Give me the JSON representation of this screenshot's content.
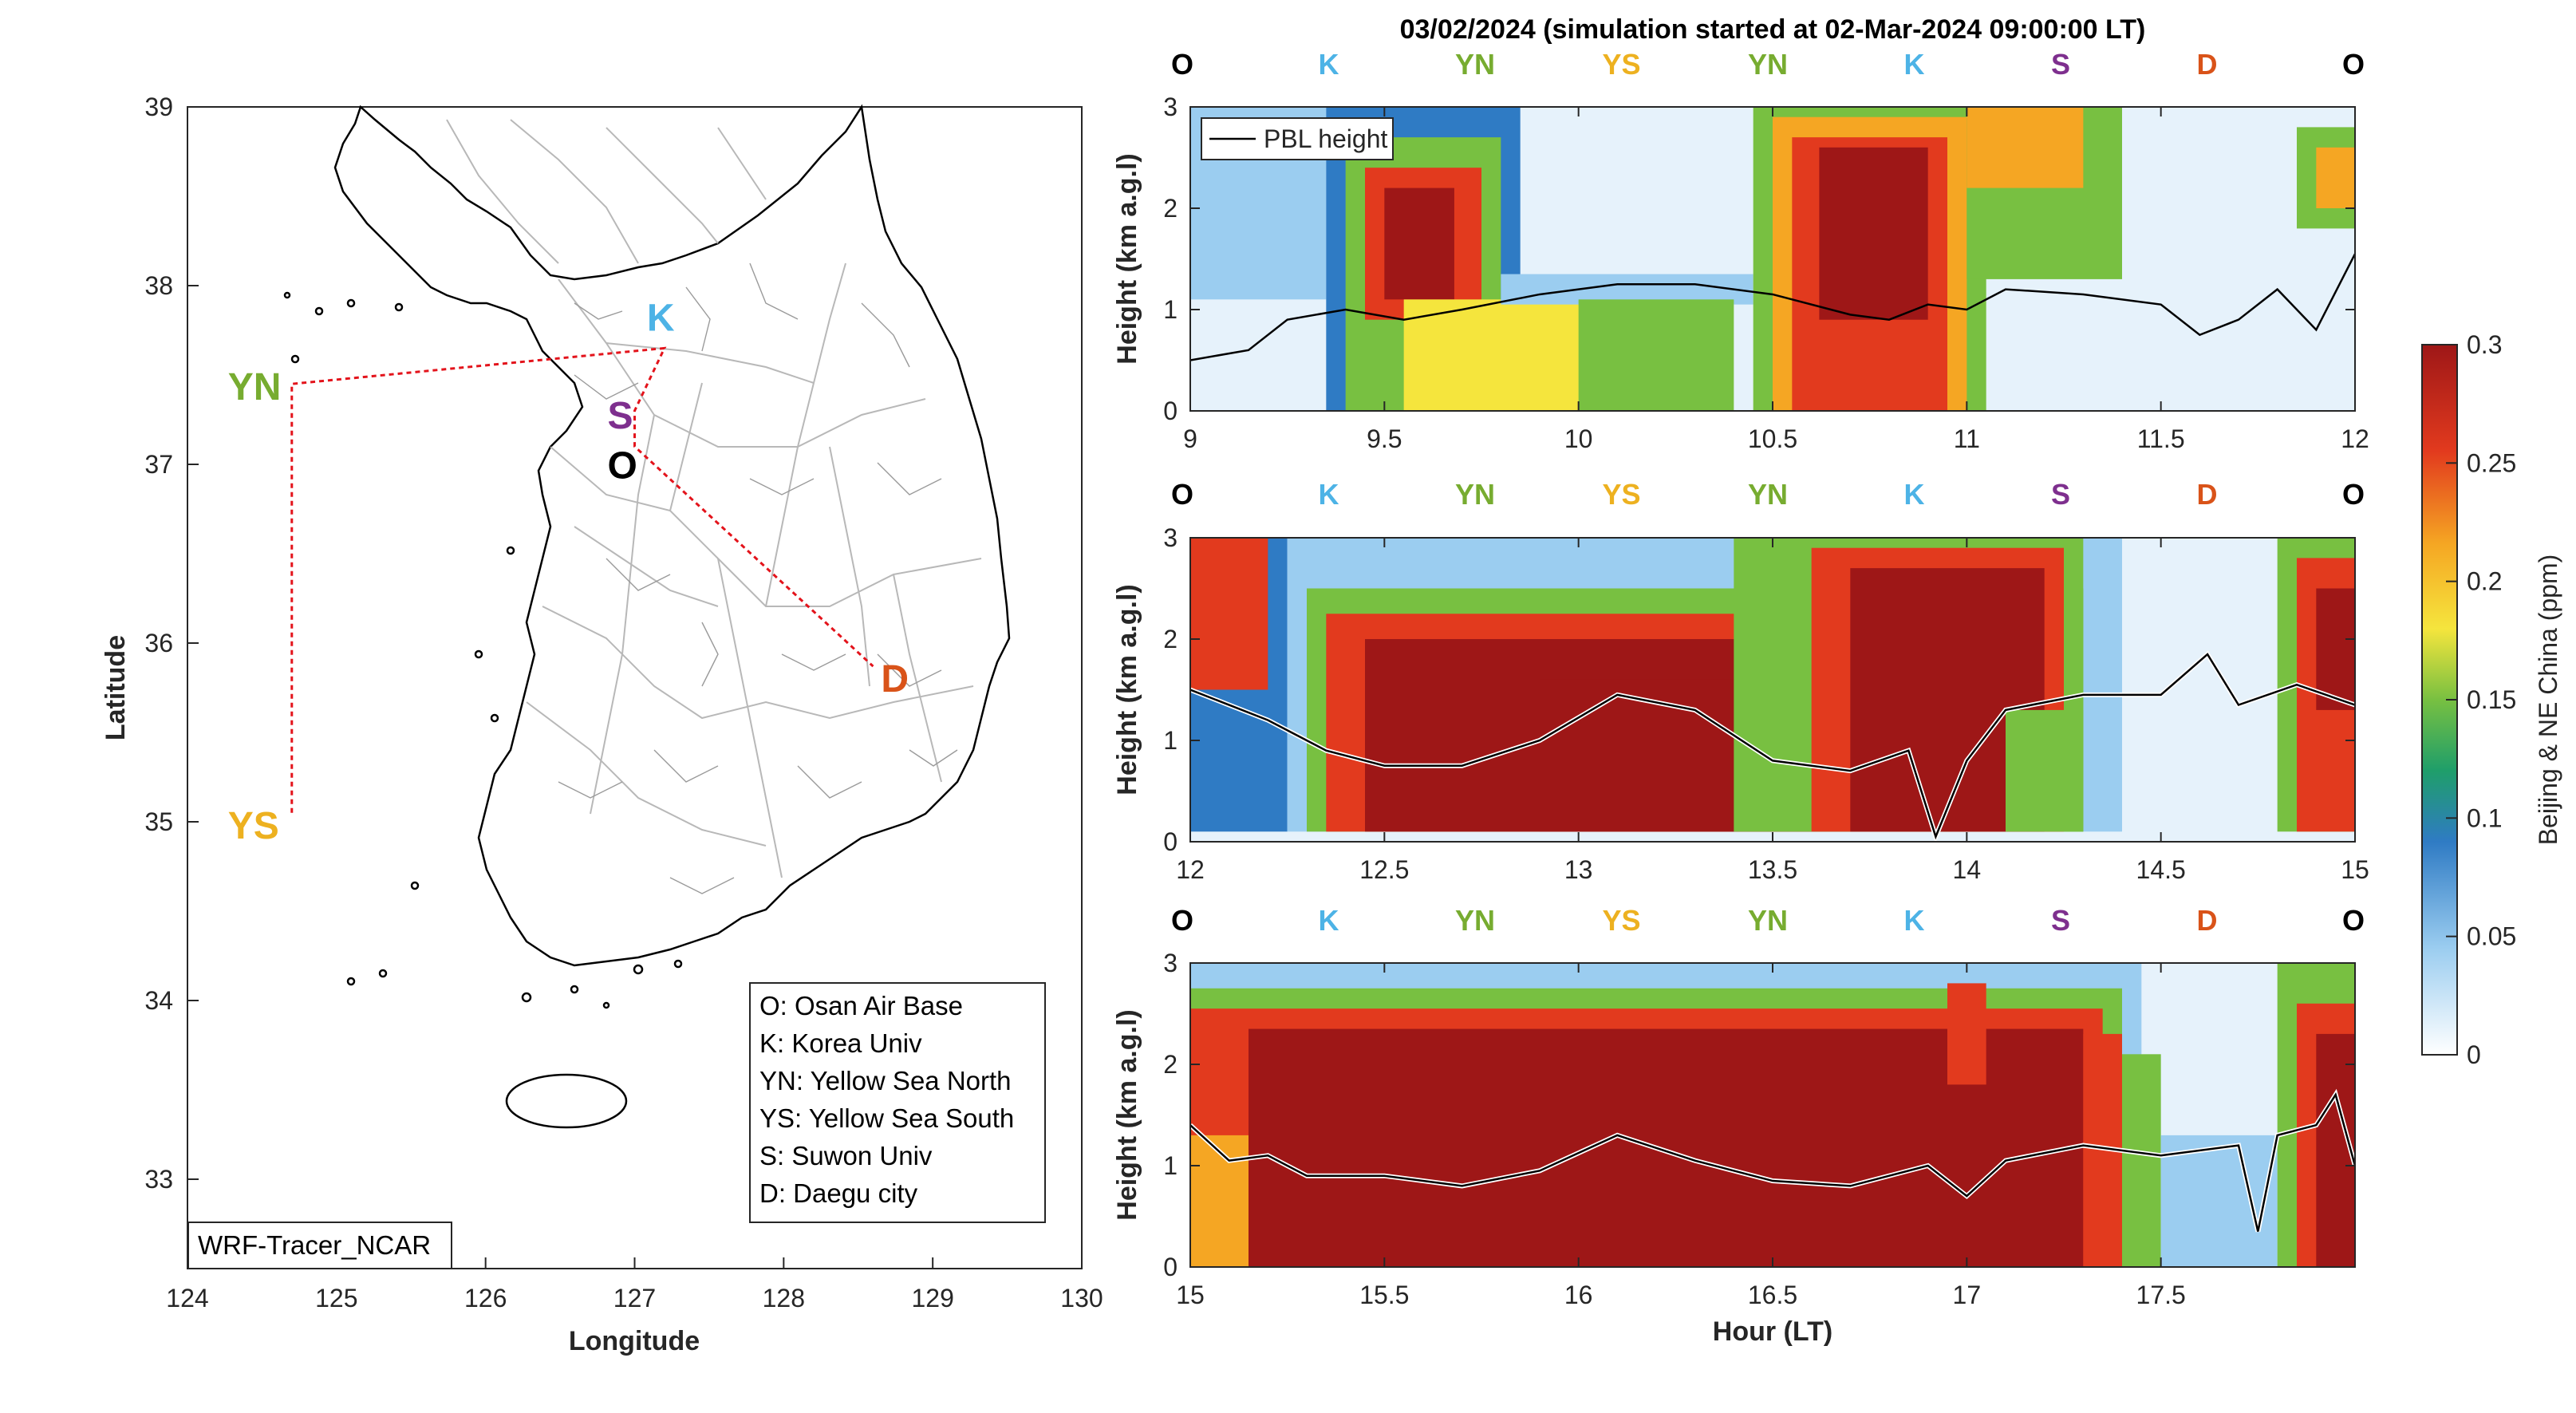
{
  "figure_title": "03/02/2024 (simulation started at 02-Mar-2024 09:00:00 LT)",
  "colors": {
    "O": "#000000",
    "K": "#4db3e6",
    "YN": "#77ac30",
    "YS": "#edb120",
    "S": "#7e2f8e",
    "D": "#d95319",
    "route": "#e3131b"
  },
  "map": {
    "xlabel": "Longitude",
    "ylabel": "Latitude",
    "xlim": [
      124,
      130
    ],
    "ylim": [
      32.5,
      39
    ],
    "xticks": [
      "124",
      "125",
      "126",
      "127",
      "128",
      "129",
      "130"
    ],
    "yticks": [
      "33",
      "34",
      "35",
      "36",
      "37",
      "38",
      "39"
    ],
    "source_label": "WRF-Tracer_NCAR",
    "legend": [
      "O: Osan Air Base",
      "K: Korea Univ",
      "YN: Yellow Sea North",
      "YS: Yellow Sea South",
      "S: Suwon Univ",
      "D: Daegu city"
    ],
    "sites": [
      {
        "label": "YN",
        "lon": 124.7,
        "lat": 37.45
      },
      {
        "label": "YS",
        "lon": 124.7,
        "lat": 35.05
      },
      {
        "label": "K",
        "lon": 127.2,
        "lat": 37.65
      },
      {
        "label": "S",
        "lon": 127.0,
        "lat": 37.3
      },
      {
        "label": "O",
        "lon": 127.0,
        "lat": 37.1
      },
      {
        "label": "D",
        "lon": 128.6,
        "lat": 35.87
      }
    ]
  },
  "colorbar": {
    "label": "Beijing & NE China (ppm)",
    "range": [
      0,
      0.3
    ],
    "ticks": [
      "0",
      "0.05",
      "0.1",
      "0.15",
      "0.2",
      "0.25",
      "0.3"
    ]
  },
  "chart_data": [
    {
      "type": "heatmap",
      "xlim": [
        9,
        12
      ],
      "ylim": [
        0,
        3
      ],
      "xticks": [
        "9",
        "9.5",
        "10",
        "10.5",
        "11",
        "11.5",
        "12"
      ],
      "yticks": [
        "0",
        "1",
        "2",
        "3"
      ],
      "ylabel": "Height (km a.g.l)",
      "legend": "PBL height",
      "site_sequence": [
        "O",
        "K",
        "YN",
        "YS",
        "YN",
        "K",
        "S",
        "D",
        "O"
      ],
      "pbl_height": [
        [
          9.0,
          0.5
        ],
        [
          9.15,
          0.6
        ],
        [
          9.25,
          0.9
        ],
        [
          9.4,
          1.0
        ],
        [
          9.55,
          0.9
        ],
        [
          9.7,
          1.0
        ],
        [
          9.9,
          1.15
        ],
        [
          10.1,
          1.25
        ],
        [
          10.3,
          1.25
        ],
        [
          10.5,
          1.15
        ],
        [
          10.7,
          0.95
        ],
        [
          10.8,
          0.9
        ],
        [
          10.9,
          1.05
        ],
        [
          11.0,
          1.0
        ],
        [
          11.1,
          1.2
        ],
        [
          11.3,
          1.15
        ],
        [
          11.5,
          1.05
        ],
        [
          11.6,
          0.75
        ],
        [
          11.7,
          0.9
        ],
        [
          11.8,
          1.2
        ],
        [
          11.9,
          0.8
        ],
        [
          12.0,
          1.55
        ]
      ]
    },
    {
      "type": "heatmap",
      "xlim": [
        12,
        15
      ],
      "ylim": [
        0,
        3
      ],
      "xticks": [
        "12",
        "12.5",
        "13",
        "13.5",
        "14",
        "14.5",
        "15"
      ],
      "yticks": [
        "0",
        "1",
        "2",
        "3"
      ],
      "ylabel": "Height (km a.g.l)",
      "site_sequence": [
        "O",
        "K",
        "YN",
        "YS",
        "YN",
        "K",
        "S",
        "D",
        "O"
      ],
      "pbl_height": [
        [
          12.0,
          1.5
        ],
        [
          12.1,
          1.35
        ],
        [
          12.2,
          1.2
        ],
        [
          12.35,
          0.9
        ],
        [
          12.5,
          0.75
        ],
        [
          12.7,
          0.75
        ],
        [
          12.9,
          1.0
        ],
        [
          13.1,
          1.45
        ],
        [
          13.3,
          1.3
        ],
        [
          13.5,
          0.8
        ],
        [
          13.7,
          0.7
        ],
        [
          13.85,
          0.9
        ],
        [
          13.92,
          0.05
        ],
        [
          14.0,
          0.8
        ],
        [
          14.1,
          1.3
        ],
        [
          14.3,
          1.45
        ],
        [
          14.5,
          1.45
        ],
        [
          14.62,
          1.85
        ],
        [
          14.7,
          1.35
        ],
        [
          14.85,
          1.55
        ],
        [
          15.0,
          1.35
        ]
      ]
    },
    {
      "type": "heatmap",
      "xlim": [
        15,
        18
      ],
      "ylim": [
        0,
        3
      ],
      "xticks": [
        "15",
        "15.5",
        "16",
        "16.5",
        "17",
        "17.5"
      ],
      "yticks": [
        "0",
        "1",
        "2",
        "3"
      ],
      "ylabel": "Height (km a.g.l)",
      "xlabel": "Hour (LT)",
      "site_sequence": [
        "O",
        "K",
        "YN",
        "YS",
        "YN",
        "K",
        "S",
        "D",
        "O"
      ],
      "pbl_height": [
        [
          15.0,
          1.4
        ],
        [
          15.1,
          1.05
        ],
        [
          15.2,
          1.1
        ],
        [
          15.3,
          0.9
        ],
        [
          15.5,
          0.9
        ],
        [
          15.7,
          0.8
        ],
        [
          15.9,
          0.95
        ],
        [
          16.1,
          1.3
        ],
        [
          16.3,
          1.05
        ],
        [
          16.5,
          0.85
        ],
        [
          16.7,
          0.8
        ],
        [
          16.9,
          1.0
        ],
        [
          17.0,
          0.7
        ],
        [
          17.1,
          1.05
        ],
        [
          17.3,
          1.2
        ],
        [
          17.5,
          1.1
        ],
        [
          17.7,
          1.2
        ],
        [
          17.75,
          0.35
        ],
        [
          17.8,
          1.3
        ],
        [
          17.9,
          1.4
        ],
        [
          17.95,
          1.7
        ],
        [
          18.0,
          1.0
        ]
      ]
    }
  ]
}
